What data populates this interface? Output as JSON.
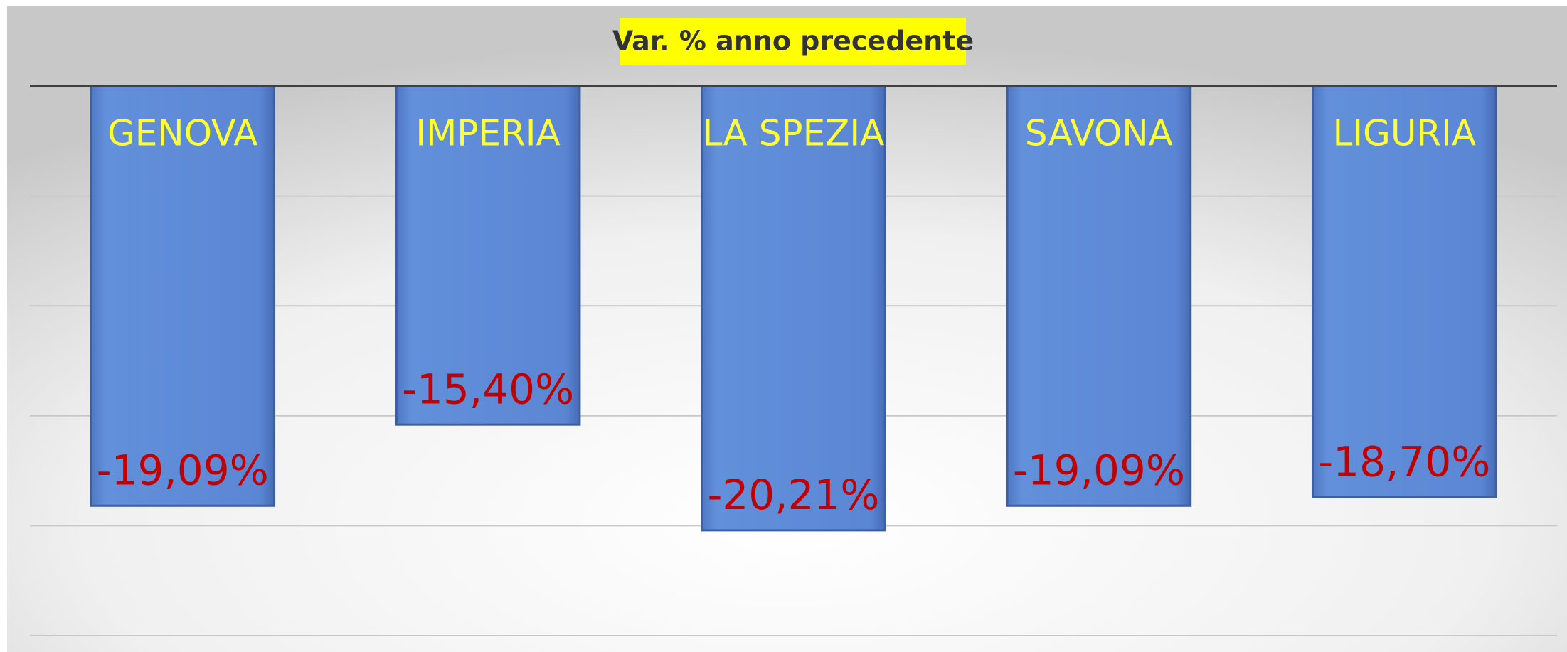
{
  "chart_data": {
    "type": "bar",
    "title": "Var. % anno precedente",
    "categories": [
      "GENOVA",
      "IMPERIA",
      "LA SPEZIA",
      "SAVONA",
      "LIGURIA"
    ],
    "values": [
      -19.09,
      -15.4,
      -20.21,
      -19.09,
      -18.7
    ],
    "value_labels": [
      "-19,09%",
      "-15,40%",
      "-20,21%",
      "-19,09%",
      "-18,70%"
    ],
    "color": "#5b86d4",
    "ylim": [
      -25,
      0
    ],
    "yticks": [
      0,
      -5,
      -10,
      -15,
      -20,
      -25
    ],
    "grid": true
  }
}
